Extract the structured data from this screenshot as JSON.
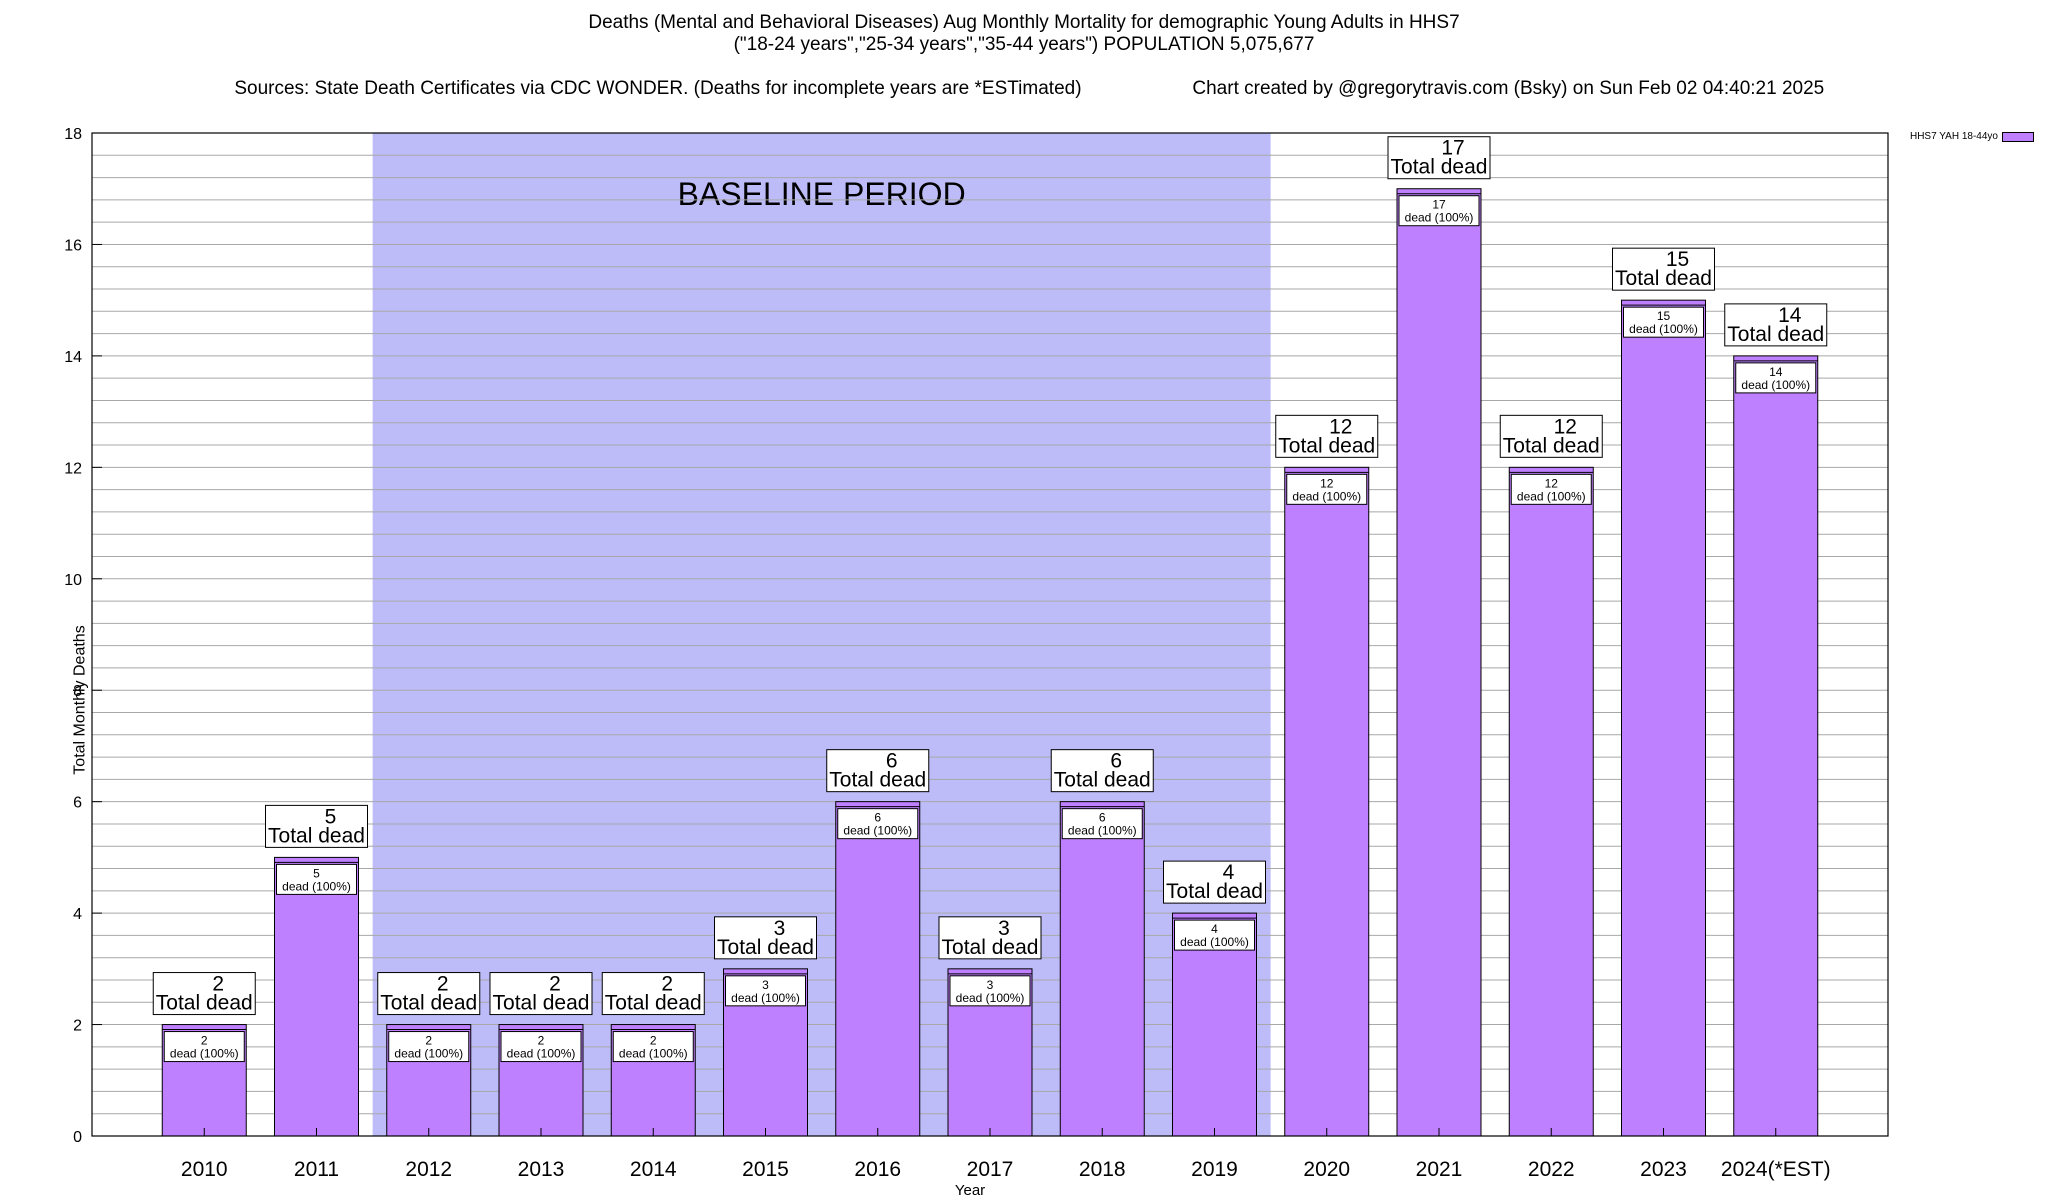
{
  "header": {
    "line1": "Deaths (Mental and Behavioral Diseases) Aug Monthly Mortality for demographic Young Adults in HHS7",
    "line2": "(\"18-24 years\",\"25-34 years\",\"35-44 years\") POPULATION 5,075,677",
    "line3_left": "Sources: State Death Certificates via CDC WONDER. (Deaths for incomplete years are *ESTimated)",
    "line3_right": "Chart created by @gregorytravis.com (Bsky) on Sun Feb 02 04:40:21 2025"
  },
  "chart_data": {
    "type": "bar",
    "xlabel": "Year",
    "ylabel": "Total Monthly Deaths",
    "ylim": [
      0,
      18
    ],
    "yticks": [
      0,
      2,
      4,
      6,
      8,
      10,
      12,
      14,
      16,
      18
    ],
    "categories": [
      "2010",
      "2011",
      "2012",
      "2013",
      "2014",
      "2015",
      "2016",
      "2017",
      "2018",
      "2019",
      "2020",
      "2021",
      "2022",
      "2023",
      "2024(*EST)"
    ],
    "series": [
      {
        "name": "HHS7 YAH 18-44yo",
        "values": [
          2,
          5,
          2,
          2,
          2,
          3,
          6,
          3,
          6,
          4,
          12,
          17,
          12,
          15,
          14
        ]
      }
    ],
    "total_label_suffix": "Total dead",
    "inner_label_suffix": "dead (100%)",
    "baseline_label": "BASELINE PERIOD",
    "baseline_range": [
      "2012",
      "2019"
    ],
    "grid": "horizontal",
    "legend_position": "top-right",
    "colors": {
      "bar": "#bf80ff",
      "baseline": "#bdbcf8",
      "bar_edge": "#000000"
    }
  }
}
